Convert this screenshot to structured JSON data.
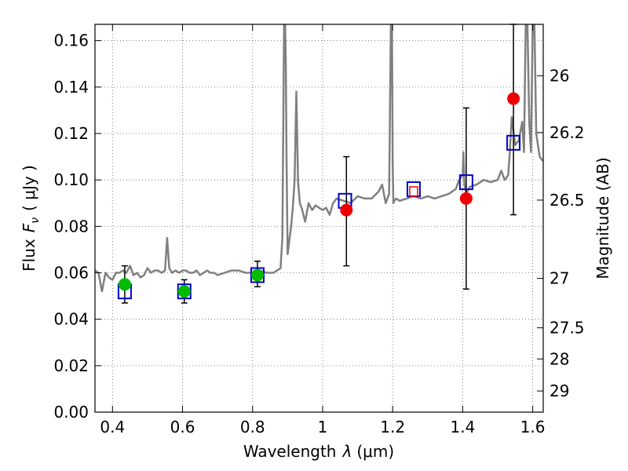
{
  "chart_data": {
    "type": "scatter",
    "title": "",
    "xlabel": "Wavelength",
    "xlabel_symbol": "λ",
    "xlabel_unit": "(μm)",
    "ylabel": "Flux",
    "ylabel_symbol": "F",
    "ylabel_subscript": "ν",
    "ylabel_unit": "( μJy )",
    "ylabel_right": "Magnitude (AB)",
    "xlim": [
      0.35,
      1.63
    ],
    "ylim": [
      0.0,
      0.167
    ],
    "grid": true,
    "x_ticks": [
      0.4,
      0.6,
      0.8,
      1.0,
      1.2,
      1.4,
      1.6
    ],
    "x_tick_labels": [
      "0.4",
      "0.6",
      "0.8",
      "1",
      "1.2",
      "1.4",
      "1.6"
    ],
    "y_ticks": [
      0.0,
      0.02,
      0.04,
      0.06,
      0.08,
      0.1,
      0.12,
      0.14,
      0.16
    ],
    "y_tick_labels": [
      "0.00",
      "0.02",
      "0.04",
      "0.06",
      "0.08",
      "0.10",
      "0.12",
      "0.14",
      "0.16"
    ],
    "right_axis_ticks": [
      {
        "label": "26",
        "flux": 0.1448
      },
      {
        "label": "26.2",
        "flux": 0.1204
      },
      {
        "label": "26.5",
        "flux": 0.0913
      },
      {
        "label": "27",
        "flux": 0.0576
      },
      {
        "label": "27.5",
        "flux": 0.0363
      },
      {
        "label": "28",
        "flux": 0.0229
      },
      {
        "label": "29",
        "flux": 0.0091
      }
    ],
    "colors": {
      "model": "#808080",
      "green_points": "#00bb00",
      "red_points": "#ee0000",
      "model_boxes": "#0000cc",
      "red_box": "#ee0000"
    },
    "series": [
      {
        "name": "model-spectrum",
        "type": "line",
        "x": [
          0.35,
          0.36,
          0.37,
          0.38,
          0.39,
          0.4,
          0.41,
          0.42,
          0.43,
          0.44,
          0.45,
          0.46,
          0.47,
          0.48,
          0.49,
          0.5,
          0.51,
          0.52,
          0.53,
          0.54,
          0.55,
          0.556,
          0.562,
          0.57,
          0.58,
          0.59,
          0.6,
          0.61,
          0.62,
          0.63,
          0.64,
          0.65,
          0.66,
          0.67,
          0.68,
          0.69,
          0.7,
          0.72,
          0.74,
          0.76,
          0.78,
          0.8,
          0.82,
          0.84,
          0.86,
          0.88,
          0.885,
          0.89,
          0.893,
          0.895,
          0.897,
          0.9,
          0.905,
          0.91,
          0.915,
          0.92,
          0.925,
          0.93,
          0.935,
          0.94,
          0.95,
          0.96,
          0.97,
          0.98,
          0.99,
          1.0,
          1.01,
          1.02,
          1.03,
          1.04,
          1.06,
          1.08,
          1.1,
          1.12,
          1.14,
          1.16,
          1.17,
          1.18,
          1.19,
          1.195,
          1.198,
          1.2,
          1.202,
          1.205,
          1.21,
          1.22,
          1.24,
          1.26,
          1.28,
          1.3,
          1.32,
          1.34,
          1.36,
          1.38,
          1.39,
          1.4,
          1.402,
          1.405,
          1.41,
          1.42,
          1.44,
          1.46,
          1.48,
          1.5,
          1.51,
          1.52,
          1.53,
          1.535,
          1.54,
          1.55,
          1.56,
          1.565,
          1.57,
          1.575,
          1.58,
          1.585,
          1.59,
          1.595,
          1.6,
          1.605,
          1.61,
          1.62,
          1.63
        ],
        "y": [
          0.061,
          0.06,
          0.052,
          0.06,
          0.058,
          0.057,
          0.06,
          0.06,
          0.061,
          0.06,
          0.063,
          0.059,
          0.06,
          0.058,
          0.059,
          0.062,
          0.06,
          0.061,
          0.061,
          0.06,
          0.061,
          0.075,
          0.062,
          0.06,
          0.061,
          0.06,
          0.061,
          0.061,
          0.06,
          0.06,
          0.061,
          0.059,
          0.06,
          0.061,
          0.06,
          0.06,
          0.059,
          0.06,
          0.061,
          0.061,
          0.06,
          0.06,
          0.061,
          0.06,
          0.06,
          0.062,
          0.075,
          0.167,
          0.167,
          0.15,
          0.11,
          0.068,
          0.074,
          0.08,
          0.088,
          0.1,
          0.138,
          0.099,
          0.09,
          0.088,
          0.082,
          0.09,
          0.087,
          0.089,
          0.088,
          0.087,
          0.088,
          0.085,
          0.09,
          0.092,
          0.091,
          0.09,
          0.093,
          0.092,
          0.092,
          0.095,
          0.098,
          0.09,
          0.094,
          0.167,
          0.167,
          0.108,
          0.09,
          0.091,
          0.092,
          0.091,
          0.092,
          0.093,
          0.092,
          0.093,
          0.092,
          0.093,
          0.094,
          0.096,
          0.1,
          0.102,
          0.112,
          0.098,
          0.094,
          0.097,
          0.098,
          0.1,
          0.099,
          0.1,
          0.104,
          0.1,
          0.102,
          0.113,
          0.127,
          0.115,
          0.117,
          0.121,
          0.125,
          0.112,
          0.167,
          0.167,
          0.125,
          0.112,
          0.167,
          0.167,
          0.12,
          0.11,
          0.108
        ]
      },
      {
        "name": "green-photometry",
        "type": "scatter",
        "points": [
          {
            "x": 0.435,
            "y": 0.055,
            "yerr_low": 0.047,
            "yerr_high": 0.063
          },
          {
            "x": 0.605,
            "y": 0.052,
            "yerr_low": 0.047,
            "yerr_high": 0.057
          },
          {
            "x": 0.814,
            "y": 0.059,
            "yerr_low": 0.054,
            "yerr_high": 0.065
          }
        ]
      },
      {
        "name": "red-photometry",
        "type": "scatter",
        "points": [
          {
            "x": 1.068,
            "y": 0.087,
            "yerr_low": 0.063,
            "yerr_high": 0.11
          },
          {
            "x": 1.41,
            "y": 0.092,
            "yerr_low": 0.053,
            "yerr_high": 0.131
          },
          {
            "x": 1.545,
            "y": 0.135,
            "yerr_low": 0.085,
            "yerr_high": 0.167
          }
        ]
      },
      {
        "name": "model-band-fluxes",
        "type": "scatter",
        "marker": "square",
        "points": [
          {
            "x": 0.435,
            "y": 0.052
          },
          {
            "x": 0.605,
            "y": 0.052
          },
          {
            "x": 0.814,
            "y": 0.059
          },
          {
            "x": 1.064,
            "y": 0.091
          },
          {
            "x": 1.26,
            "y": 0.096
          },
          {
            "x": 1.41,
            "y": 0.099
          },
          {
            "x": 1.545,
            "y": 0.116
          }
        ]
      },
      {
        "name": "red-square-point",
        "type": "scatter",
        "marker": "square",
        "points": [
          {
            "x": 1.26,
            "y": 0.095
          }
        ]
      }
    ]
  }
}
